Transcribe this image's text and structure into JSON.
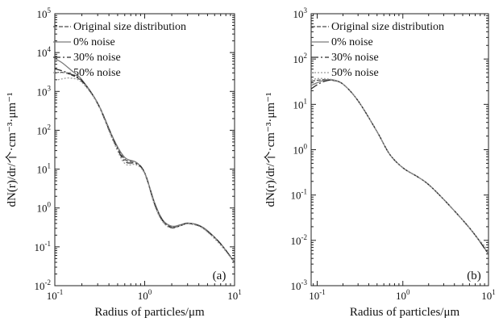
{
  "chart_data": [
    {
      "type": "line",
      "panel_label": "(a)",
      "xlabel": "Radius of particles/μm",
      "ylabel": "dN(r)/dr/个·cm⁻³·μm⁻¹",
      "xscale": "log",
      "yscale": "log",
      "xlim": [
        0.1,
        10
      ],
      "ylim": [
        0.01,
        100000
      ],
      "x_ticks": [
        {
          "value": 0.1,
          "base": "10",
          "exp": "-1"
        },
        {
          "value": 1,
          "base": "10",
          "exp": "0"
        },
        {
          "value": 10,
          "base": "10",
          "exp": "1"
        }
      ],
      "y_ticks": [
        {
          "value": 0.01,
          "base": "10",
          "exp": "-2"
        },
        {
          "value": 0.1,
          "base": "10",
          "exp": "-1"
        },
        {
          "value": 1,
          "base": "10",
          "exp": "0"
        },
        {
          "value": 10,
          "base": "10",
          "exp": "1"
        },
        {
          "value": 100,
          "base": "10",
          "exp": "2"
        },
        {
          "value": 1000,
          "base": "10",
          "exp": "3"
        },
        {
          "value": 10000,
          "base": "10",
          "exp": "4"
        },
        {
          "value": 100000,
          "base": "10",
          "exp": "5"
        }
      ],
      "grid": false,
      "legend_position": "top-right",
      "series": [
        {
          "name": "Original size distribution",
          "color": "#4a4a4a",
          "dash": "5,2",
          "x": [
            0.1,
            0.12,
            0.15,
            0.2,
            0.3,
            0.45,
            0.6,
            0.8,
            1.0,
            1.3,
            1.6,
            2.0,
            2.5,
            3.0,
            4.0,
            5.0,
            7.0,
            10.0
          ],
          "y": [
            3000,
            3100,
            2700,
            1800,
            500,
            60,
            18,
            15,
            8,
            1.2,
            0.45,
            0.32,
            0.36,
            0.4,
            0.35,
            0.25,
            0.12,
            0.04
          ]
        },
        {
          "name": "0% noise",
          "color": "#7a7a7a",
          "dash": "",
          "x": [
            0.1,
            0.12,
            0.15,
            0.2,
            0.3,
            0.45,
            0.6,
            0.8,
            1.0,
            1.3,
            1.6,
            2.0,
            2.5,
            3.0,
            4.0,
            5.0,
            7.0,
            10.0
          ],
          "y": [
            7000,
            5500,
            3600,
            2000,
            500,
            60,
            20,
            15,
            8,
            1.3,
            0.48,
            0.34,
            0.37,
            0.41,
            0.36,
            0.26,
            0.12,
            0.04
          ]
        },
        {
          "name": "30% noise",
          "color": "#2a2a2a",
          "dash": "9,3,2,3",
          "x": [
            0.1,
            0.12,
            0.15,
            0.2,
            0.3,
            0.45,
            0.6,
            0.8,
            1.0,
            1.3,
            1.6,
            2.0,
            2.5,
            3.0,
            4.0,
            5.0,
            7.0,
            10.0
          ],
          "y": [
            3800,
            3400,
            2800,
            1900,
            480,
            55,
            16,
            14,
            8,
            1.2,
            0.46,
            0.31,
            0.35,
            0.4,
            0.35,
            0.25,
            0.12,
            0.04
          ]
        },
        {
          "name": "50% noise",
          "color": "#9a9a9a",
          "dash": "2,2",
          "x": [
            0.1,
            0.12,
            0.15,
            0.2,
            0.3,
            0.45,
            0.6,
            0.8,
            1.0,
            1.3,
            1.6,
            2.0,
            2.5,
            3.0,
            4.0,
            5.0,
            7.0,
            10.0
          ],
          "y": [
            1900,
            2100,
            2200,
            1700,
            470,
            50,
            14,
            13,
            7.5,
            1.1,
            0.43,
            0.3,
            0.35,
            0.39,
            0.34,
            0.24,
            0.11,
            0.04
          ]
        }
      ]
    },
    {
      "type": "line",
      "panel_label": "(b)",
      "xlabel": "Radius of particles/μm",
      "ylabel": "dN(r)/dr/个·cm⁻³·μm⁻¹",
      "xscale": "log",
      "yscale": "log",
      "xlim": [
        0.085,
        10
      ],
      "ylim": [
        0.001,
        1000
      ],
      "x_ticks": [
        {
          "value": 0.1,
          "base": "10",
          "exp": "-1"
        },
        {
          "value": 1,
          "base": "10",
          "exp": "0"
        },
        {
          "value": 10,
          "base": "10",
          "exp": "1"
        }
      ],
      "y_ticks": [
        {
          "value": 0.001,
          "base": "10",
          "exp": "-3"
        },
        {
          "value": 0.01,
          "base": "10",
          "exp": "-2"
        },
        {
          "value": 0.1,
          "base": "10",
          "exp": "-1"
        },
        {
          "value": 1,
          "base": "10",
          "exp": "0"
        },
        {
          "value": 10,
          "base": "10",
          "exp": "1"
        },
        {
          "value": 100,
          "base": "10",
          "exp": "2"
        },
        {
          "value": 1000,
          "base": "10",
          "exp": "3"
        }
      ],
      "grid": false,
      "legend_position": "top-right",
      "series": [
        {
          "name": "Original size distribution",
          "color": "#4a4a4a",
          "dash": "5,2",
          "x": [
            0.085,
            0.1,
            0.12,
            0.15,
            0.2,
            0.3,
            0.5,
            0.7,
            1.0,
            1.5,
            2.0,
            3.0,
            5.0,
            7.0,
            10.0
          ],
          "y": [
            32,
            34,
            35,
            34,
            28,
            12,
            2.5,
            0.8,
            0.4,
            0.25,
            0.17,
            0.08,
            0.028,
            0.013,
            0.005
          ]
        },
        {
          "name": "0% noise",
          "color": "#7a7a7a",
          "dash": "",
          "x": [
            0.085,
            0.1,
            0.12,
            0.15,
            0.2,
            0.3,
            0.5,
            0.7,
            1.0,
            1.5,
            2.0,
            3.0,
            5.0,
            7.0,
            10.0
          ],
          "y": [
            26,
            30,
            34,
            35,
            28,
            12,
            2.5,
            0.8,
            0.4,
            0.25,
            0.17,
            0.08,
            0.028,
            0.013,
            0.005
          ]
        },
        {
          "name": "30% noise",
          "color": "#2a2a2a",
          "dash": "9,3,2,3",
          "x": [
            0.085,
            0.1,
            0.12,
            0.15,
            0.2,
            0.3,
            0.5,
            0.7,
            1.0,
            1.5,
            2.0,
            3.0,
            5.0,
            7.0,
            10.0
          ],
          "y": [
            22,
            27,
            32,
            34,
            28,
            12,
            2.5,
            0.8,
            0.4,
            0.25,
            0.17,
            0.08,
            0.028,
            0.013,
            0.005
          ]
        },
        {
          "name": "50% noise",
          "color": "#9a9a9a",
          "dash": "2,2",
          "x": [
            0.085,
            0.1,
            0.12,
            0.15,
            0.2,
            0.3,
            0.5,
            0.7,
            1.0,
            1.5,
            2.0,
            3.0,
            5.0,
            7.0,
            10.0
          ],
          "y": [
            35,
            37,
            37,
            35,
            28,
            12,
            2.5,
            0.8,
            0.4,
            0.25,
            0.17,
            0.08,
            0.028,
            0.013,
            0.006
          ]
        }
      ]
    }
  ]
}
